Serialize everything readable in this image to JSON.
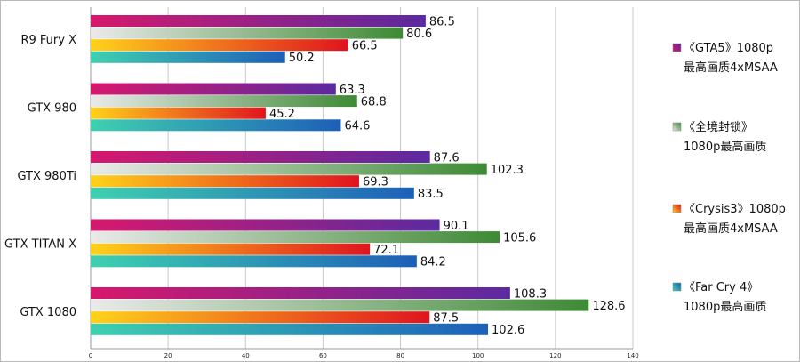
{
  "chart_data": {
    "type": "bar",
    "orientation": "horizontal",
    "title": "",
    "xlabel": "",
    "ylabel": "",
    "xlim": [
      0,
      140
    ],
    "x_ticks": [
      "0",
      "20",
      "40",
      "60",
      "80",
      "100",
      "120",
      "140"
    ],
    "grid": true,
    "legend_position": "right",
    "categories": [
      "R9 Fury X",
      "GTX 980",
      "GTX 980Ti",
      "GTX TITAN X",
      "GTX 1080"
    ],
    "series": [
      {
        "name": "《GTA5》1080p最高画质4xMSAA",
        "legend_lines": [
          "《GTA5》1080p",
          "最高画质4xMSAA"
        ],
        "colors": [
          "#d6186c",
          "#5b2aa0"
        ],
        "values": [
          86.5,
          63.3,
          87.6,
          90.1,
          108.3
        ]
      },
      {
        "name": "《全境封锁》1080p最高画质",
        "legend_lines": [
          "《全境封锁》",
          "1080p最高画质"
        ],
        "colors": [
          "#eaeaea",
          "#3e8a35"
        ],
        "values": [
          80.6,
          68.8,
          102.3,
          105.6,
          128.6
        ]
      },
      {
        "name": "《Crysis3》1080p最高画质4xMSAA",
        "legend_lines": [
          "《Crysis3》1080p",
          "最高画质4xMSAA"
        ],
        "colors": [
          "#ffd21a",
          "#e0141e"
        ],
        "values": [
          66.5,
          45.2,
          69.3,
          72.1,
          87.5
        ]
      },
      {
        "name": "《Far Cry 4》1080p最高画质",
        "legend_lines": [
          "《Far Cry 4》",
          "1080p最高画质"
        ],
        "colors": [
          "#3fd0b0",
          "#1d5fb8"
        ],
        "values": [
          50.2,
          64.6,
          83.5,
          84.2,
          102.6
        ]
      }
    ]
  }
}
